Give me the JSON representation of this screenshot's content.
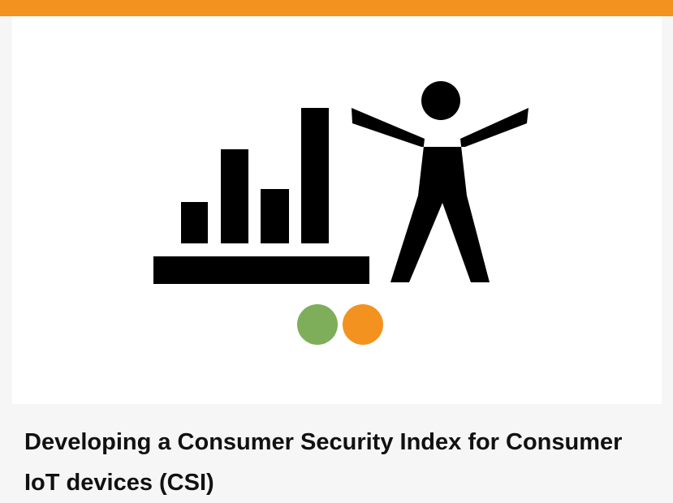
{
  "header": {
    "accent_color": "#f3921e"
  },
  "card": {
    "image": {
      "icon": "security-index-icon",
      "colors": {
        "figure": "#000000",
        "green_dot": "#7fae5a",
        "orange_dot": "#f3921e"
      }
    },
    "title": "Developing a Consumer Security Index for Consumer IoT devices (CSI)"
  }
}
